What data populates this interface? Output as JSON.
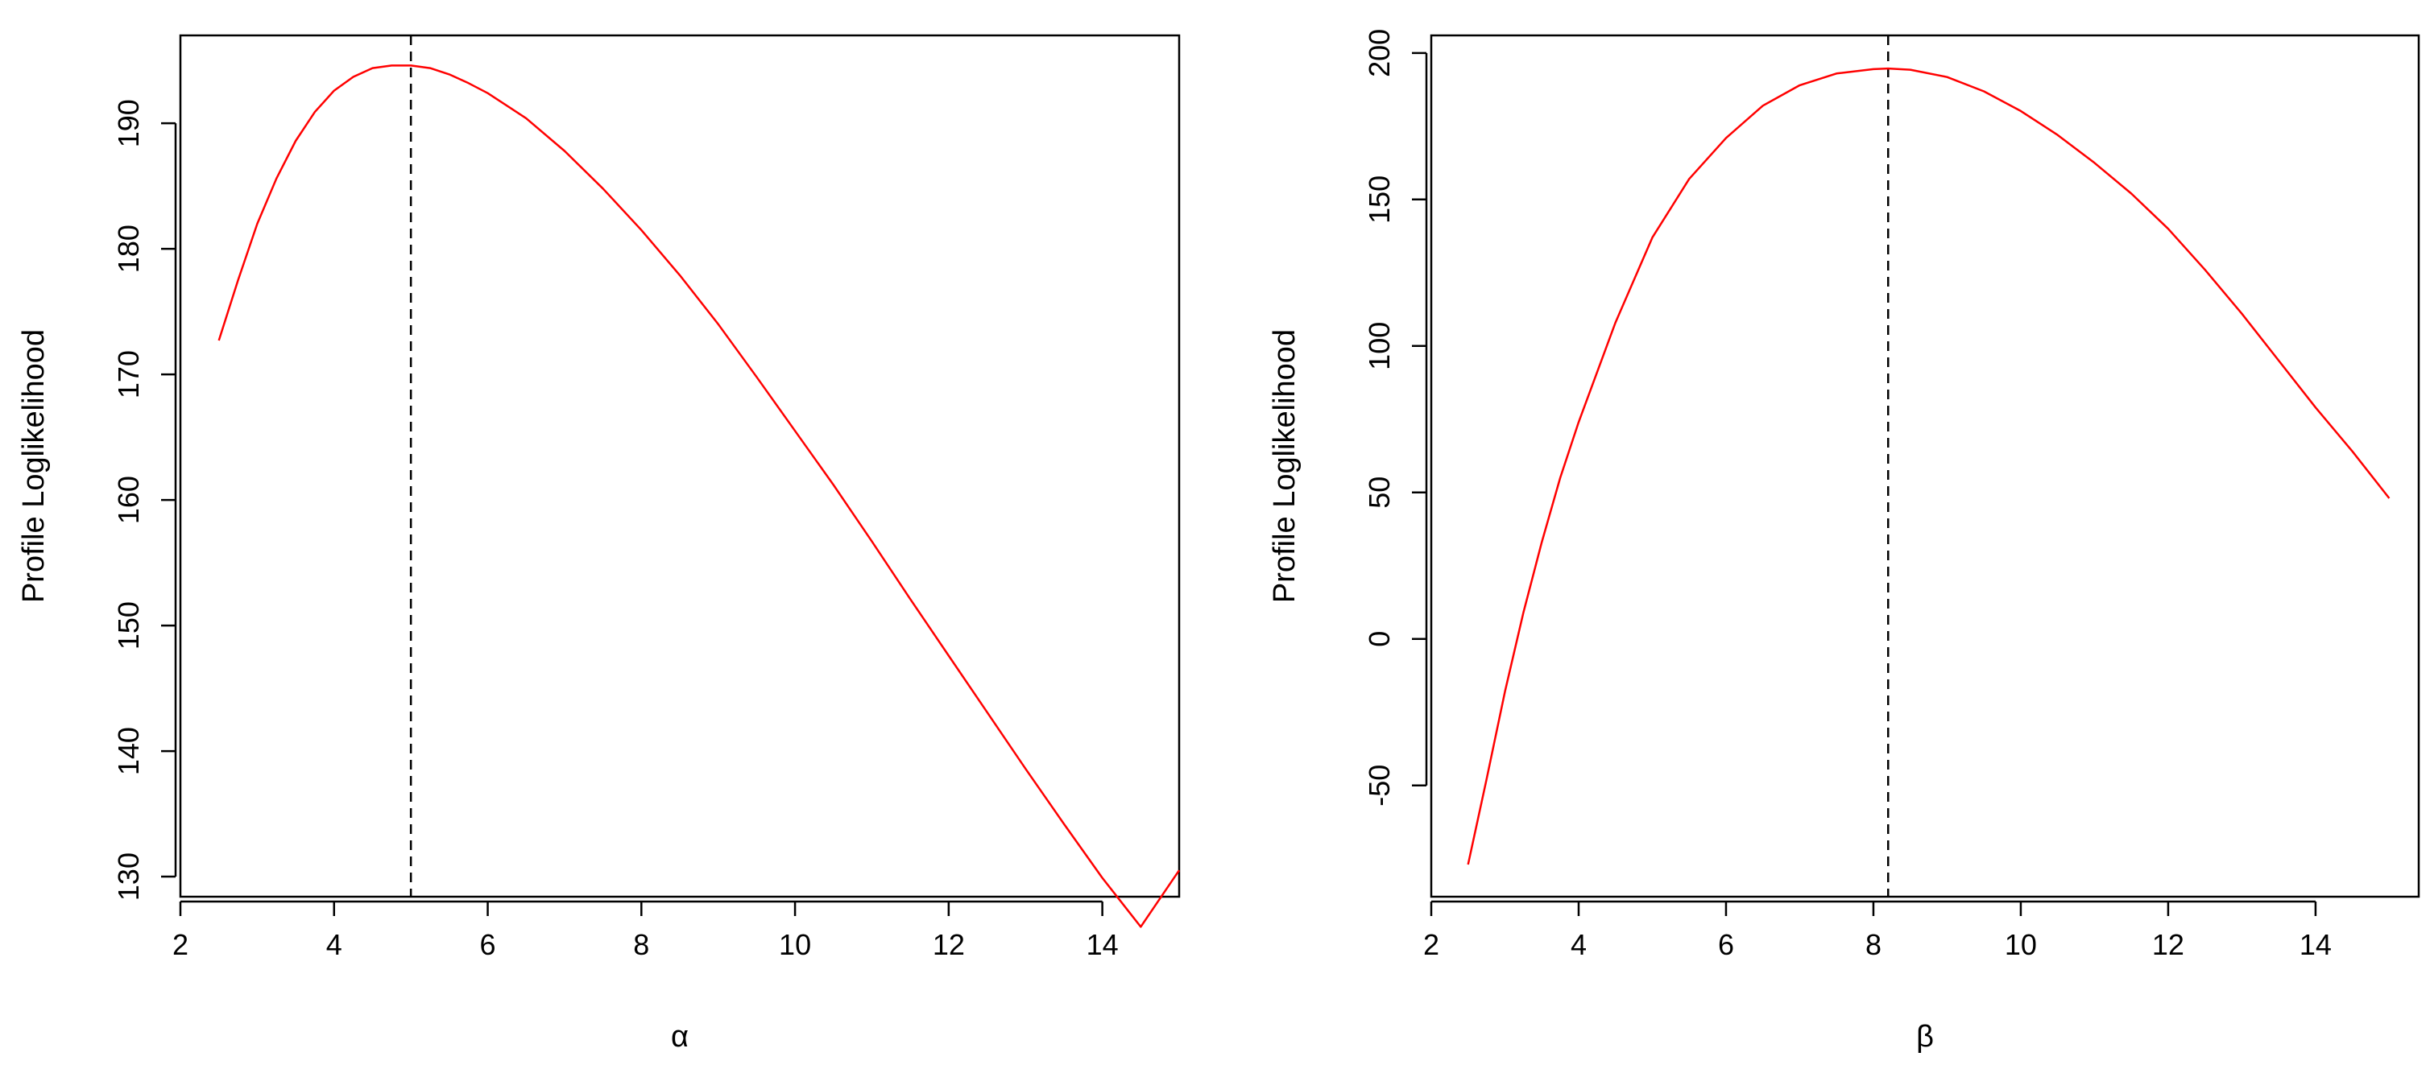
{
  "chart_data": [
    {
      "type": "line",
      "xlabel": "α",
      "ylabel": "Profile Loglikelihood",
      "xlim": [
        2,
        15
      ],
      "ylim": [
        128.4,
        197
      ],
      "xticks": [
        2,
        4,
        6,
        8,
        10,
        12,
        14
      ],
      "yticks": [
        130,
        140,
        150,
        160,
        170,
        180,
        190
      ],
      "series": [
        {
          "color": "#ff0000",
          "x": [
            2.5,
            2.75,
            3,
            3.25,
            3.5,
            3.75,
            4,
            4.25,
            4.5,
            4.75,
            5,
            5.25,
            5.5,
            5.75,
            6,
            6.5,
            7,
            7.5,
            8,
            8.5,
            9,
            9.5,
            10,
            10.5,
            11,
            11.5,
            12,
            12.5,
            13,
            13.5,
            14,
            14.5,
            15
          ],
          "y": [
            172.7,
            177.5,
            182.0,
            185.6,
            188.6,
            190.9,
            192.6,
            193.7,
            194.4,
            194.6,
            194.6,
            194.4,
            193.9,
            193.2,
            192.4,
            190.4,
            187.8,
            184.8,
            181.5,
            177.9,
            174.0,
            169.8,
            165.5,
            161.2,
            156.7,
            152.1,
            147.6,
            143.1,
            138.6,
            134.2,
            129.9,
            126.0,
            130.5
          ]
        }
      ],
      "vline": {
        "x": 5.0,
        "style": "dashed",
        "color": "#000000"
      }
    },
    {
      "type": "line",
      "xlabel": "β",
      "ylabel": "Profile Loglikelihood",
      "xlim": [
        2,
        15.4
      ],
      "ylim": [
        -88,
        206
      ],
      "xticks": [
        2,
        4,
        6,
        8,
        10,
        12,
        14
      ],
      "yticks": [
        -50,
        0,
        50,
        100,
        150,
        200
      ],
      "series": [
        {
          "color": "#ff0000",
          "x": [
            2.5,
            2.75,
            3,
            3.25,
            3.5,
            3.75,
            4,
            4.5,
            5,
            5.5,
            6,
            6.5,
            7,
            7.5,
            8,
            8.2,
            8.5,
            9,
            9.5,
            10,
            10.5,
            11,
            11.5,
            12,
            12.5,
            13,
            13.5,
            14,
            14.5,
            15
          ],
          "y": [
            -77,
            -48,
            -18,
            9,
            33,
            55,
            74,
            108,
            137,
            157,
            171,
            182,
            189,
            193,
            194.5,
            194.7,
            194.3,
            191.8,
            186.9,
            180.2,
            172,
            162.5,
            152,
            140,
            126,
            111,
            95,
            79,
            64,
            48
          ]
        }
      ],
      "vline": {
        "x": 8.2,
        "style": "dashed",
        "color": "#000000"
      }
    }
  ]
}
